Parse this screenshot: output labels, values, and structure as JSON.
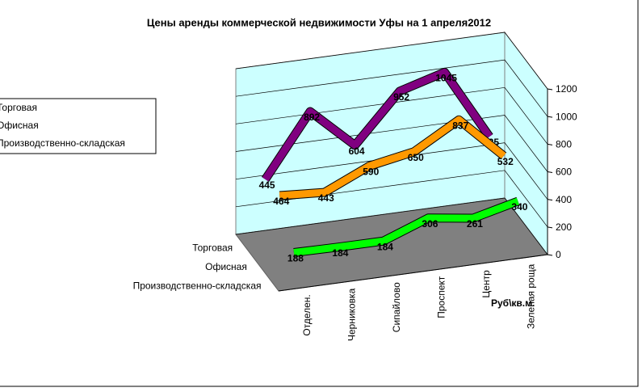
{
  "chart_data": {
    "type": "line",
    "title": "Цены аренды коммерческой недвижимости Уфы на 1 апреля2012",
    "y_label": "Руб\\кв.м.",
    "categories": [
      "Отделен.",
      "Черниковка",
      "Сипайлово",
      "Проспект",
      "Центр",
      "Зеленая роща"
    ],
    "series": [
      {
        "name": "Торговая",
        "color": "#800080",
        "values": [
          445,
          892,
          604,
          952,
          1045,
          535
        ]
      },
      {
        "name": "Офисная",
        "color": "#ff9900",
        "values": [
          464,
          443,
          590,
          650,
          837,
          532
        ]
      },
      {
        "name": "Производственно-складская",
        "color": "#00ff00",
        "values": [
          188,
          184,
          184,
          306,
          261,
          340
        ]
      }
    ],
    "ylim": [
      0,
      1200
    ],
    "yticks": [
      0,
      200,
      400,
      600,
      800,
      1000,
      1200
    ],
    "grid": true,
    "legend": "left"
  }
}
